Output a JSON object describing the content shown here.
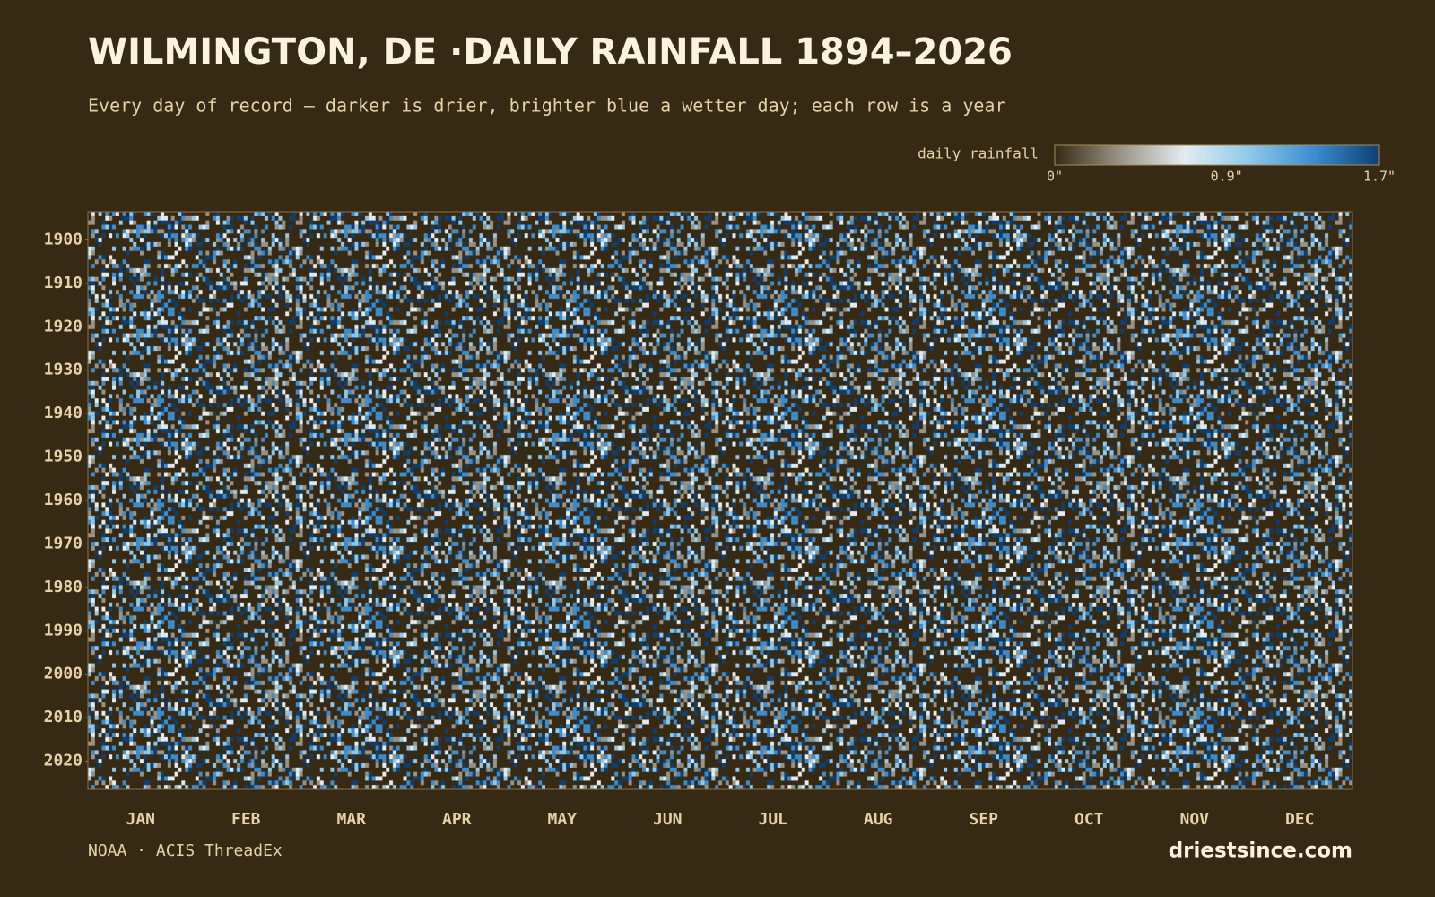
{
  "chart_data": {
    "type": "heatmap",
    "title": "WILMINGTON, DE ·DAILY RAINFALL 1894–2026",
    "subtitle": "Every day of record — darker is drier, brighter blue a wetter day; each row is a year",
    "categories": [
      "JAN",
      "FEB",
      "MAR",
      "APR",
      "MAY",
      "JUN",
      "JUL",
      "AUG",
      "SEP",
      "OCT",
      "NOV",
      "DEC"
    ],
    "ylim": [
      1893.5,
      2026.5
    ],
    "yticks": [
      1900,
      1910,
      1920,
      1930,
      1940,
      1950,
      1960,
      1970,
      1980,
      1990,
      2000,
      2010,
      2020
    ],
    "colorbar": {
      "label": "daily rainfall",
      "lim": [
        0,
        1.7
      ],
      "ticks": [
        {
          "value": 0,
          "label": "0\""
        },
        {
          "value": 0.9,
          "label": "0.9\""
        },
        {
          "value": 1.7,
          "label": "1.7\""
        }
      ],
      "colors": [
        "#362a15",
        "#9a9385",
        "#e4ecf0",
        "#8fc8ea",
        "#3b8dcf",
        "#0d3f73"
      ]
    },
    "source": "NOAA · ACIS ThreadEx",
    "brand": "driestsince.com"
  }
}
